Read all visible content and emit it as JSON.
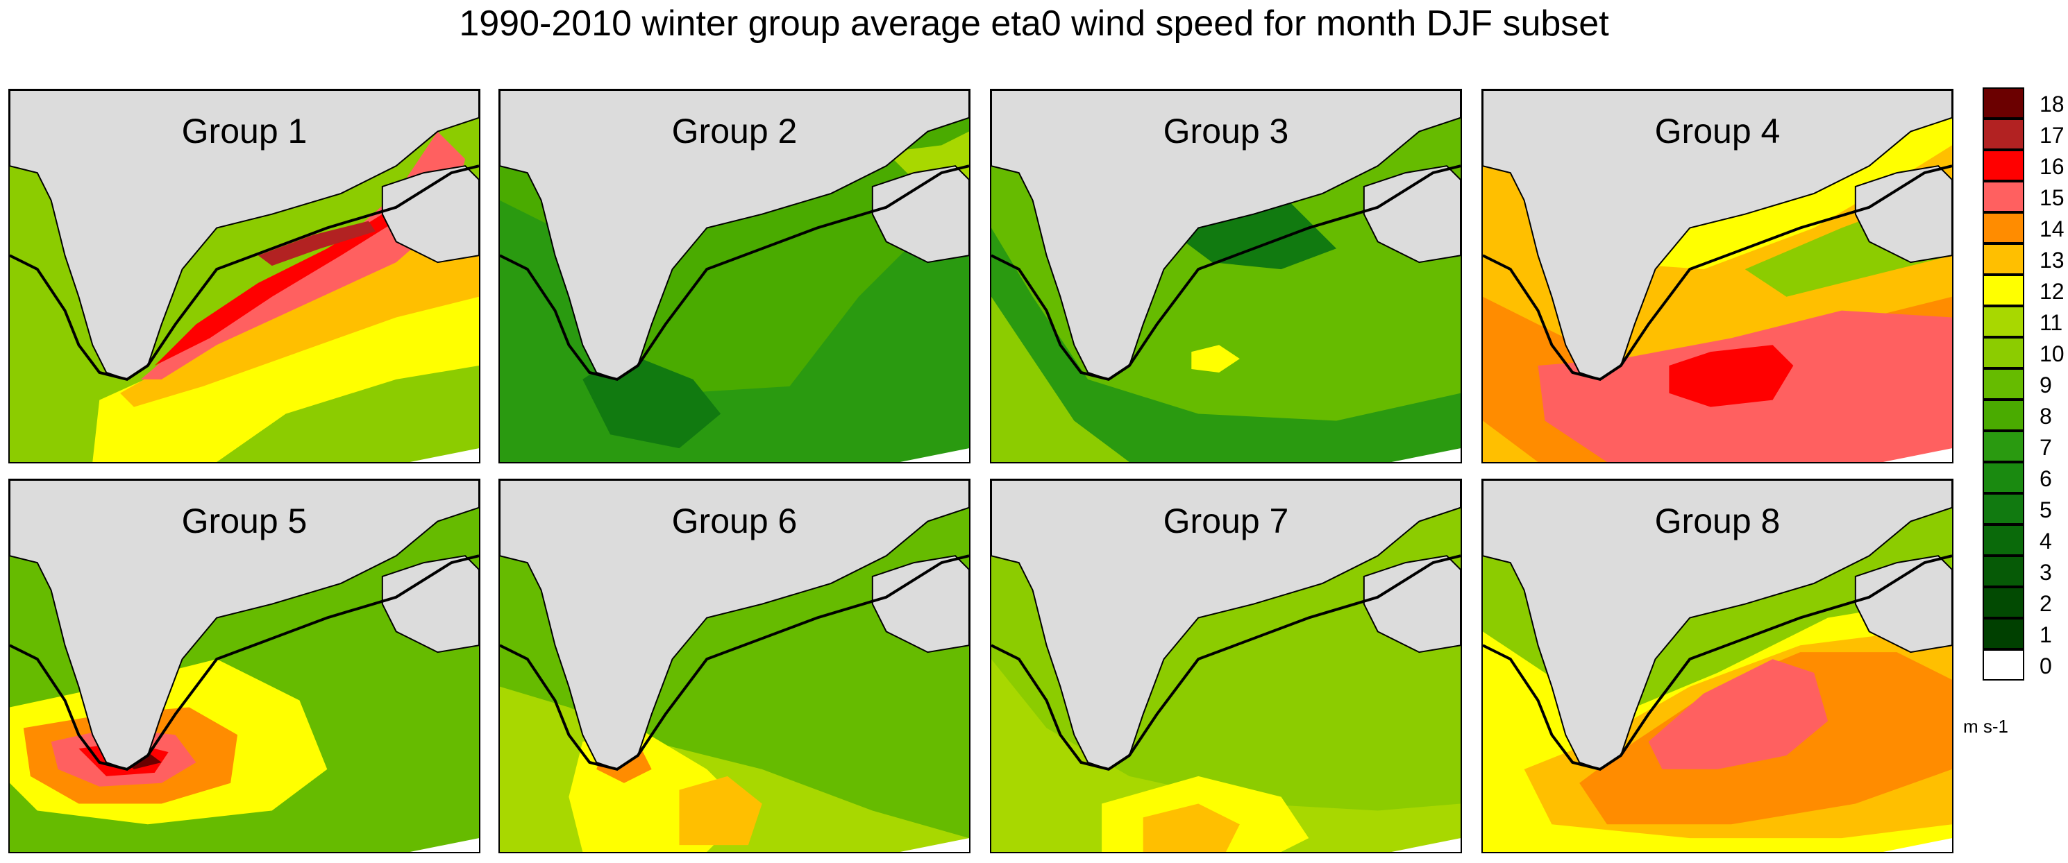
{
  "title": "1990-2010 winter group average eta0 wind speed for month DJF subset",
  "units": "m s-1",
  "land_color": "#dcdcdc",
  "colorbar": {
    "levels": [
      {
        "label": "18",
        "color": "#6b0000"
      },
      {
        "label": "17",
        "color": "#b22222"
      },
      {
        "label": "16",
        "color": "#ff0000"
      },
      {
        "label": "15",
        "color": "#ff6060"
      },
      {
        "label": "14",
        "color": "#ff8c00"
      },
      {
        "label": "13",
        "color": "#ffbf00"
      },
      {
        "label": "12",
        "color": "#ffff00"
      },
      {
        "label": "11",
        "color": "#a8d800"
      },
      {
        "label": "10",
        "color": "#8ccc00"
      },
      {
        "label": "9",
        "color": "#66bb00"
      },
      {
        "label": "8",
        "color": "#4aab00"
      },
      {
        "label": "7",
        "color": "#2a9a10"
      },
      {
        "label": "6",
        "color": "#1a8a10"
      },
      {
        "label": "5",
        "color": "#117a10"
      },
      {
        "label": "4",
        "color": "#0a6a0a"
      },
      {
        "label": "3",
        "color": "#065a06"
      },
      {
        "label": "2",
        "color": "#024a02"
      },
      {
        "label": "1",
        "color": "#004000"
      },
      {
        "label": "0",
        "color": "#ffffff"
      }
    ]
  },
  "panels": [
    {
      "label": "Group 1",
      "background": "#8ccc00",
      "blobs": [
        {
          "color": "#ffff00",
          "level": 12
        },
        {
          "color": "#ffbf00",
          "level": 13
        },
        {
          "color": "#ff6060",
          "level": 15
        },
        {
          "color": "#ff0000",
          "level": 16
        },
        {
          "color": "#b22222",
          "level": 17
        }
      ]
    },
    {
      "label": "Group 2",
      "background": "#4aab00",
      "blobs": [
        {
          "color": "#2a9a10",
          "level": 7
        },
        {
          "color": "#117a10",
          "level": 5
        },
        {
          "color": "#a8d800",
          "level": 11
        }
      ]
    },
    {
      "label": "Group 3",
      "background": "#66bb00",
      "blobs": [
        {
          "color": "#2a9a10",
          "level": 7
        },
        {
          "color": "#8ccc00",
          "level": 10
        },
        {
          "color": "#ffff00",
          "level": 12
        },
        {
          "color": "#117a10",
          "level": 5
        }
      ]
    },
    {
      "label": "Group 4",
      "background": "#ffbf00",
      "blobs": [
        {
          "color": "#ff8c00",
          "level": 14
        },
        {
          "color": "#ff6060",
          "level": 15
        },
        {
          "color": "#ff0000",
          "level": 16
        },
        {
          "color": "#8ccc00",
          "level": 10
        },
        {
          "color": "#ffff00",
          "level": 12
        }
      ]
    },
    {
      "label": "Group 5",
      "background": "#66bb00",
      "blobs": [
        {
          "color": "#ffff00",
          "level": 12
        },
        {
          "color": "#ff8c00",
          "level": 14
        },
        {
          "color": "#ff6060",
          "level": 15
        },
        {
          "color": "#ff0000",
          "level": 16
        },
        {
          "color": "#6b0000",
          "level": 18
        }
      ]
    },
    {
      "label": "Group 6",
      "background": "#66bb00",
      "blobs": [
        {
          "color": "#a8d800",
          "level": 11
        },
        {
          "color": "#ffff00",
          "level": 12
        },
        {
          "color": "#ffbf00",
          "level": 13
        },
        {
          "color": "#ff8c00",
          "level": 14
        }
      ]
    },
    {
      "label": "Group 7",
      "background": "#8ccc00",
      "blobs": [
        {
          "color": "#a8d800",
          "level": 11
        },
        {
          "color": "#ffff00",
          "level": 12
        },
        {
          "color": "#ffbf00",
          "level": 13
        }
      ]
    },
    {
      "label": "Group 8",
      "background": "#8ccc00",
      "blobs": [
        {
          "color": "#ffff00",
          "level": 12
        },
        {
          "color": "#ffbf00",
          "level": 13
        },
        {
          "color": "#ff8c00",
          "level": 14
        },
        {
          "color": "#ff6060",
          "level": 15
        }
      ]
    }
  ]
}
